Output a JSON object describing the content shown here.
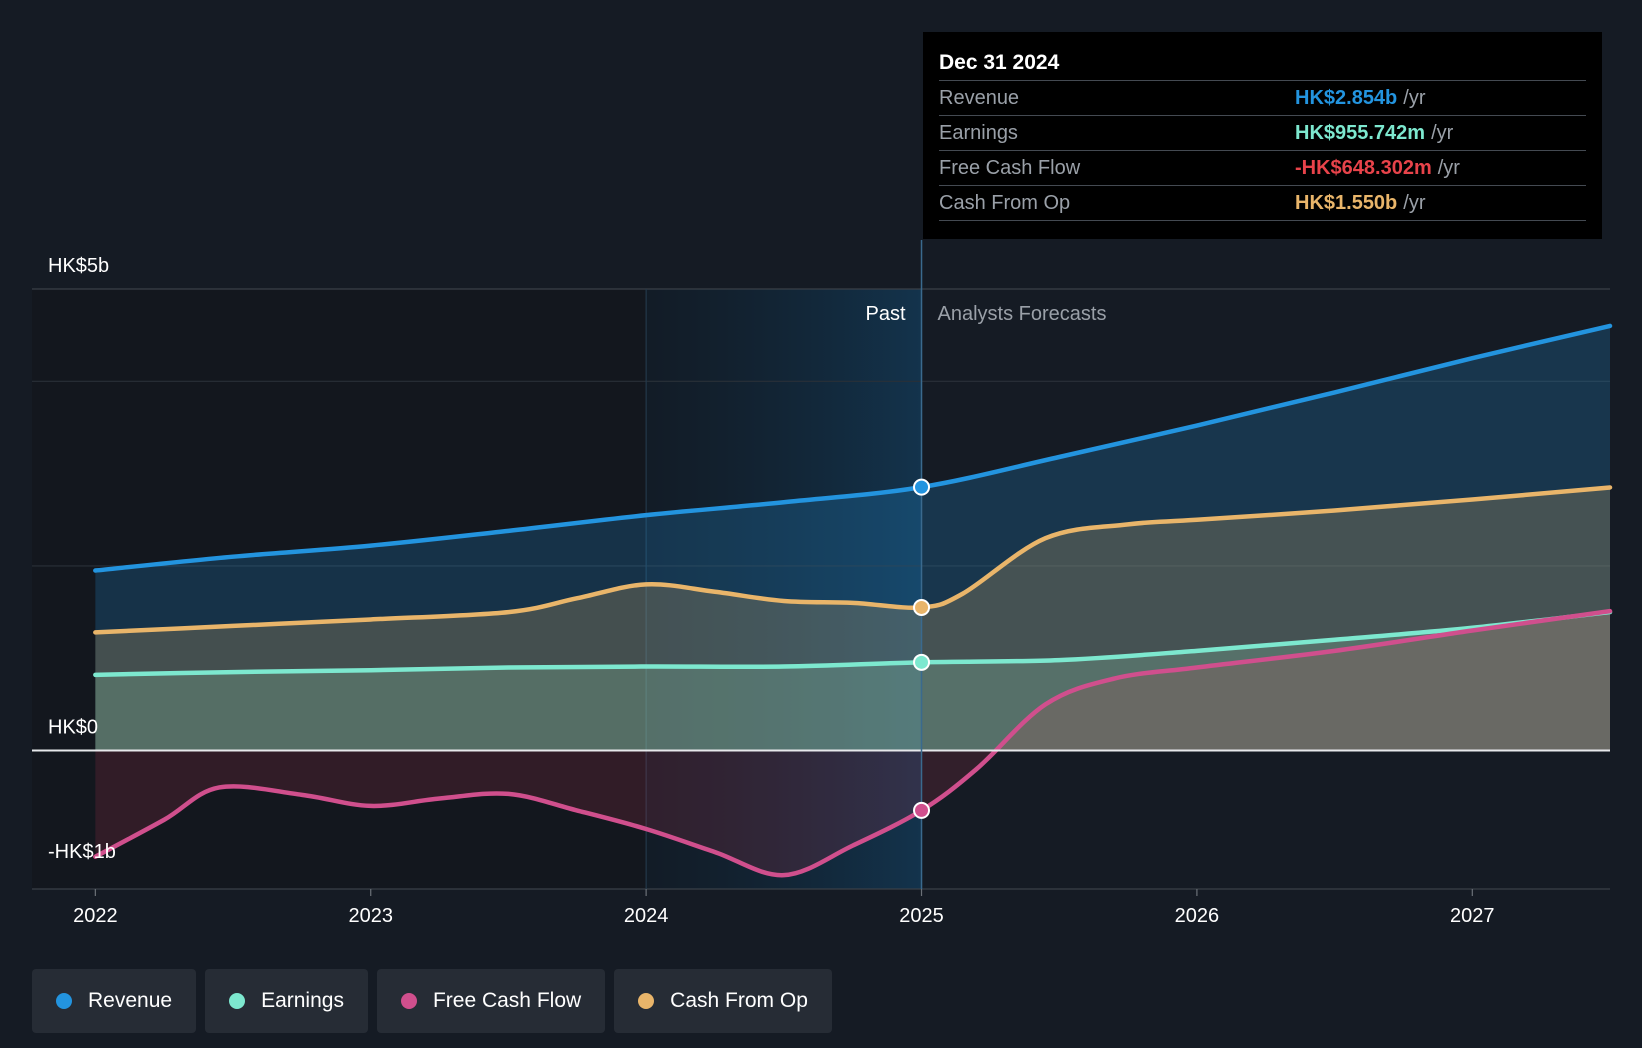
{
  "chart_data": {
    "type": "line",
    "title": "",
    "x_ticks": [
      2022,
      2023,
      2024,
      2025,
      2026,
      2027
    ],
    "y_labels": [
      "HK$5b",
      "HK$0",
      "-HK$1b"
    ],
    "ylim": [
      -1.5,
      5
    ],
    "xlim": [
      2021.77,
      2027.5
    ],
    "past_region": {
      "start": 2024.0,
      "end": 2025.0,
      "label": "Past"
    },
    "forecast_label": "Analysts Forecasts",
    "series": [
      {
        "name": "Revenue",
        "color": "#2394df",
        "x": [
          2022,
          2022.5,
          2023,
          2023.5,
          2024,
          2024.5,
          2025,
          2025.5,
          2026,
          2026.5,
          2027,
          2027.5
        ],
        "values": [
          1.95,
          2.1,
          2.22,
          2.38,
          2.55,
          2.69,
          2.854,
          3.18,
          3.52,
          3.88,
          4.25,
          4.6
        ]
      },
      {
        "name": "Earnings",
        "color": "#7de8cf",
        "x": [
          2022,
          2022.5,
          2023,
          2023.5,
          2024,
          2024.5,
          2025,
          2025.5,
          2026,
          2026.5,
          2027,
          2027.5
        ],
        "values": [
          0.82,
          0.85,
          0.87,
          0.9,
          0.91,
          0.91,
          0.955742,
          0.98,
          1.08,
          1.2,
          1.33,
          1.5
        ]
      },
      {
        "name": "Free Cash Flow",
        "color": "#d04f8d",
        "x": [
          2022,
          2022.25,
          2022.45,
          2022.75,
          2023,
          2023.25,
          2023.5,
          2023.75,
          2024,
          2024.25,
          2024.5,
          2024.75,
          2025,
          2025.2,
          2025.45,
          2025.7,
          2026,
          2026.5,
          2027,
          2027.5
        ],
        "values": [
          -1.15,
          -0.75,
          -0.4,
          -0.48,
          -0.6,
          -0.52,
          -0.47,
          -0.65,
          -0.85,
          -1.1,
          -1.35,
          -1.03,
          -0.648302,
          -0.2,
          0.5,
          0.78,
          0.9,
          1.08,
          1.3,
          1.51
        ]
      },
      {
        "name": "Cash From Op",
        "color": "#e9b56a",
        "x": [
          2022,
          2022.5,
          2023,
          2023.5,
          2023.75,
          2024,
          2024.25,
          2024.5,
          2024.75,
          2025,
          2025.15,
          2025.45,
          2025.75,
          2026,
          2026.5,
          2027,
          2027.5
        ],
        "values": [
          1.28,
          1.35,
          1.42,
          1.5,
          1.65,
          1.8,
          1.72,
          1.62,
          1.6,
          1.55,
          1.7,
          2.3,
          2.45,
          2.5,
          2.6,
          2.72,
          2.85
        ]
      }
    ],
    "highlight_x": 2025
  },
  "tooltip": {
    "date": "Dec 31 2024",
    "rows": [
      {
        "name": "Revenue",
        "value": "HK$2.854b",
        "unit": "/yr",
        "color": "#2394df"
      },
      {
        "name": "Earnings",
        "value": "HK$955.742m",
        "unit": "/yr",
        "color": "#7de8cf"
      },
      {
        "name": "Free Cash Flow",
        "value": "-HK$648.302m",
        "unit": "/yr",
        "color": "#e8434a"
      },
      {
        "name": "Cash From Op",
        "value": "HK$1.550b",
        "unit": "/yr",
        "color": "#e9b56a"
      }
    ]
  },
  "legend": [
    {
      "label": "Revenue",
      "color": "#2394df"
    },
    {
      "label": "Earnings",
      "color": "#7de8cf"
    },
    {
      "label": "Free Cash Flow",
      "color": "#d04f8d"
    },
    {
      "label": "Cash From Op",
      "color": "#e9b56a"
    }
  ]
}
